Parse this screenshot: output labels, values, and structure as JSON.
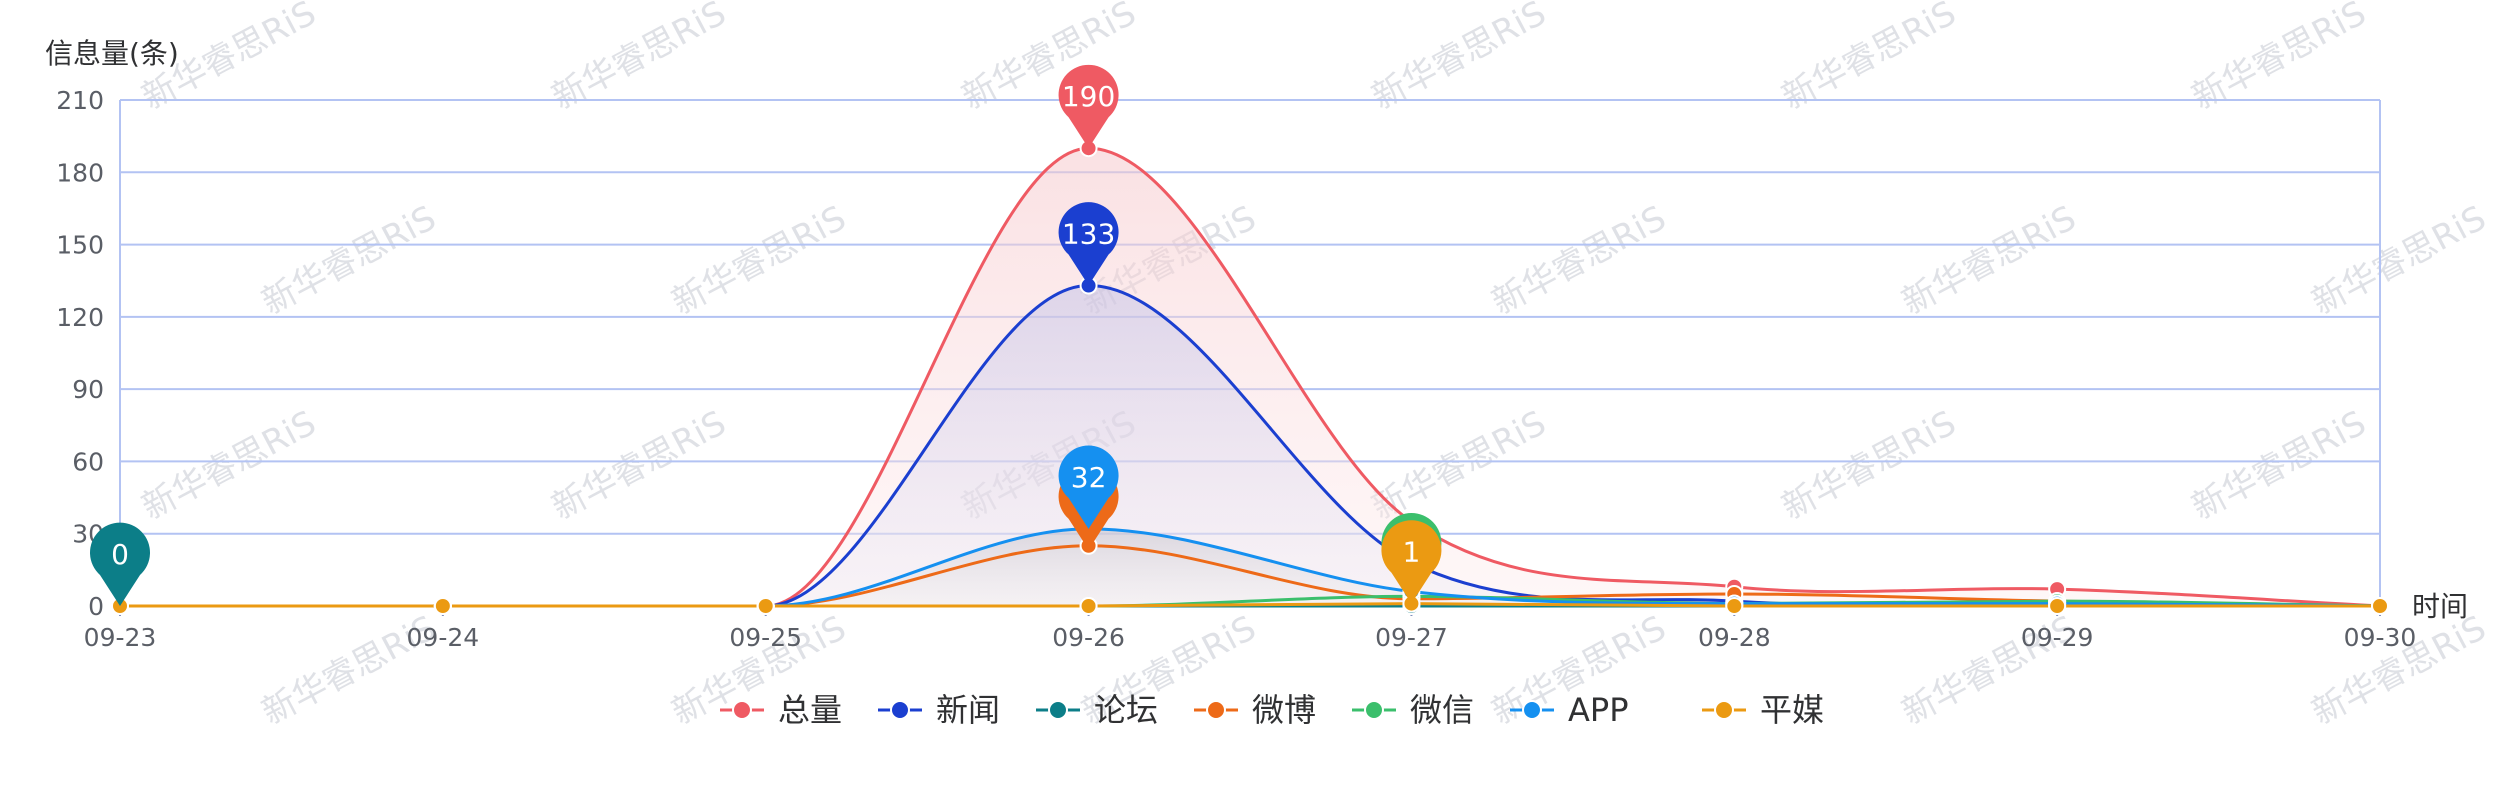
{
  "watermark": "新华睿思RiS",
  "chart_data": {
    "type": "line",
    "ylabel": "信息量(条)",
    "xlabel": "时间",
    "categories": [
      "09-23",
      "09-24",
      "09-25",
      "09-26",
      "09-27",
      "09-28",
      "09-29",
      "09-30"
    ],
    "ylim": [
      0,
      210
    ],
    "yticks": [
      0,
      30,
      60,
      90,
      120,
      150,
      180,
      210
    ],
    "grid": true,
    "legend_position": "bottom-center",
    "series": [
      {
        "name": "总量",
        "color": "#ef5a63",
        "values": [
          0,
          0,
          0,
          190,
          35,
          8,
          7,
          0
        ],
        "area": true,
        "pin": {
          "index": 3,
          "label": "190"
        }
      },
      {
        "name": "新闻",
        "color": "#1b3fd0",
        "values": [
          0,
          0,
          0,
          133,
          18,
          2,
          1,
          0
        ],
        "area": true,
        "pin": {
          "index": 3,
          "label": "133"
        }
      },
      {
        "name": "论坛",
        "color": "#0c7e88",
        "values": [
          0,
          0,
          0,
          0,
          0,
          0,
          0,
          0
        ],
        "area": false,
        "pin": {
          "index": 0,
          "label": "0"
        }
      },
      {
        "name": "微博",
        "color": "#ed6a18",
        "values": [
          0,
          0,
          0,
          25,
          3,
          5,
          2,
          0
        ],
        "area": false,
        "pin": {
          "index": 3,
          "label": ""
        }
      },
      {
        "name": "微信",
        "color": "#3bbf6c",
        "values": [
          0,
          0,
          0,
          0,
          4,
          1,
          2,
          0
        ],
        "area": false,
        "pin": {
          "index": 4,
          "label": ""
        }
      },
      {
        "name": "APP",
        "color": "#1590f0",
        "values": [
          0,
          0,
          0,
          32,
          6,
          1,
          1,
          0
        ],
        "area": true,
        "pin": {
          "index": 3,
          "label": "32"
        }
      },
      {
        "name": "平媒",
        "color": "#eb9a12",
        "values": [
          0,
          0,
          0,
          0,
          1,
          0,
          0,
          0
        ],
        "area": false,
        "pin": {
          "index": 4,
          "label": "1"
        }
      }
    ]
  }
}
